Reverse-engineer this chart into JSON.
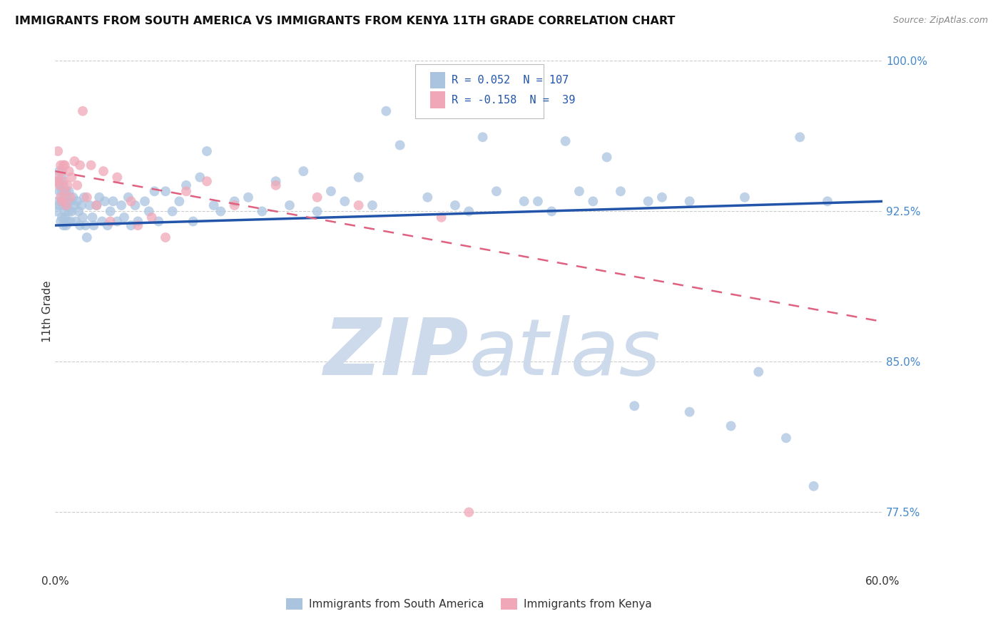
{
  "title": "IMMIGRANTS FROM SOUTH AMERICA VS IMMIGRANTS FROM KENYA 11TH GRADE CORRELATION CHART",
  "source": "Source: ZipAtlas.com",
  "xlabel_blue": "Immigrants from South America",
  "xlabel_pink": "Immigrants from Kenya",
  "ylabel": "11th Grade",
  "xlim": [
    0.0,
    0.6
  ],
  "ylim": [
    0.745,
    1.005
  ],
  "yticks": [
    0.775,
    0.85,
    0.925,
    1.0
  ],
  "ytick_labels": [
    "77.5%",
    "85.0%",
    "92.5%",
    "100.0%"
  ],
  "R_blue": 0.052,
  "N_blue": 107,
  "R_pink": -0.158,
  "N_pink": 39,
  "blue_color": "#aac4e0",
  "pink_color": "#f0a8b8",
  "trend_blue": "#2255aa",
  "trend_pink": "#e06080",
  "watermark_color": "#ccdaeb",
  "blue_scatter_x": [
    0.001,
    0.002,
    0.002,
    0.003,
    0.003,
    0.003,
    0.004,
    0.004,
    0.005,
    0.005,
    0.005,
    0.005,
    0.006,
    0.006,
    0.006,
    0.007,
    0.007,
    0.007,
    0.008,
    0.008,
    0.008,
    0.009,
    0.009,
    0.01,
    0.01,
    0.011,
    0.011,
    0.012,
    0.013,
    0.014,
    0.015,
    0.016,
    0.017,
    0.018,
    0.019,
    0.02,
    0.021,
    0.022,
    0.023,
    0.025,
    0.027,
    0.028,
    0.03,
    0.032,
    0.034,
    0.036,
    0.038,
    0.04,
    0.042,
    0.045,
    0.048,
    0.05,
    0.053,
    0.055,
    0.058,
    0.06,
    0.065,
    0.068,
    0.072,
    0.075,
    0.08,
    0.085,
    0.09,
    0.095,
    0.1,
    0.105,
    0.11,
    0.115,
    0.12,
    0.13,
    0.14,
    0.15,
    0.16,
    0.17,
    0.18,
    0.19,
    0.2,
    0.21,
    0.22,
    0.23,
    0.24,
    0.25,
    0.27,
    0.29,
    0.31,
    0.34,
    0.36,
    0.38,
    0.4,
    0.43,
    0.46,
    0.49,
    0.51,
    0.53,
    0.55,
    0.41,
    0.46,
    0.5,
    0.54,
    0.56,
    0.3,
    0.32,
    0.35,
    0.37,
    0.39,
    0.42,
    0.44
  ],
  "blue_scatter_y": [
    0.925,
    0.93,
    0.94,
    0.928,
    0.935,
    0.945,
    0.92,
    0.938,
    0.93,
    0.922,
    0.942,
    0.935,
    0.918,
    0.928,
    0.938,
    0.922,
    0.932,
    0.925,
    0.928,
    0.918,
    0.935,
    0.92,
    0.93,
    0.925,
    0.935,
    0.92,
    0.93,
    0.925,
    0.932,
    0.928,
    0.92,
    0.93,
    0.925,
    0.918,
    0.928,
    0.922,
    0.932,
    0.918,
    0.912,
    0.928,
    0.922,
    0.918,
    0.928,
    0.932,
    0.92,
    0.93,
    0.918,
    0.925,
    0.93,
    0.92,
    0.928,
    0.922,
    0.932,
    0.918,
    0.928,
    0.92,
    0.93,
    0.925,
    0.935,
    0.92,
    0.935,
    0.925,
    0.93,
    0.938,
    0.92,
    0.942,
    0.955,
    0.928,
    0.925,
    0.93,
    0.932,
    0.925,
    0.94,
    0.928,
    0.945,
    0.925,
    0.935,
    0.93,
    0.942,
    0.928,
    0.975,
    0.958,
    0.932,
    0.928,
    0.962,
    0.93,
    0.925,
    0.935,
    0.952,
    0.93,
    0.825,
    0.818,
    0.845,
    0.812,
    0.788,
    0.935,
    0.93,
    0.932,
    0.962,
    0.93,
    0.925,
    0.935,
    0.93,
    0.96,
    0.93,
    0.828,
    0.932
  ],
  "pink_scatter_x": [
    0.001,
    0.002,
    0.002,
    0.003,
    0.004,
    0.004,
    0.005,
    0.005,
    0.006,
    0.006,
    0.007,
    0.007,
    0.008,
    0.009,
    0.01,
    0.011,
    0.012,
    0.014,
    0.016,
    0.018,
    0.02,
    0.023,
    0.026,
    0.03,
    0.035,
    0.04,
    0.045,
    0.055,
    0.06,
    0.07,
    0.08,
    0.095,
    0.11,
    0.13,
    0.16,
    0.19,
    0.22,
    0.28,
    0.3
  ],
  "pink_scatter_y": [
    0.94,
    0.942,
    0.955,
    0.938,
    0.932,
    0.948,
    0.945,
    0.93,
    0.94,
    0.948,
    0.935,
    0.948,
    0.928,
    0.938,
    0.945,
    0.932,
    0.942,
    0.95,
    0.938,
    0.948,
    0.975,
    0.932,
    0.948,
    0.928,
    0.945,
    0.92,
    0.942,
    0.93,
    0.918,
    0.922,
    0.912,
    0.935,
    0.94,
    0.928,
    0.938,
    0.932,
    0.928,
    0.922,
    0.775
  ],
  "blue_trend_x0": 0.0,
  "blue_trend_y0": 0.918,
  "blue_trend_x1": 0.6,
  "blue_trend_y1": 0.93,
  "pink_trend_x0": 0.0,
  "pink_trend_y0": 0.945,
  "pink_trend_x1": 0.6,
  "pink_trend_y1": 0.87
}
